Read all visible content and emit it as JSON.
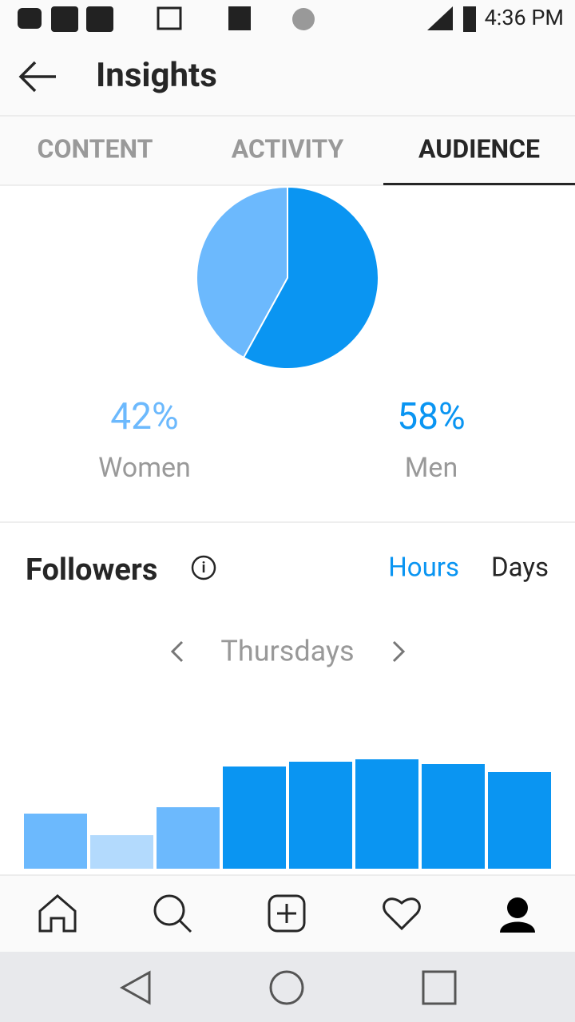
{
  "status_bar": {
    "time": "4:36 PM"
  },
  "header": {
    "title": "Insights"
  },
  "tabs": [
    "CONTENT",
    "ACTIVITY",
    "AUDIENCE"
  ],
  "followers": {
    "title": "Followers",
    "toggle": [
      "Hours",
      "Days"
    ],
    "day": "Thursdays"
  },
  "chart_data": [
    {
      "type": "pie",
      "categories": [
        "Women",
        "Men"
      ],
      "values": [
        42,
        58
      ],
      "value_labels": [
        "42%",
        "58%"
      ],
      "colors": [
        "#6cb9fd",
        "#0a95f2"
      ]
    },
    {
      "type": "bar",
      "values": [
        69,
        42,
        77,
        128,
        134,
        137,
        131,
        121
      ],
      "colors": [
        "#6cb9fd",
        "#b3dafd",
        "#6cb9fd",
        "#0a95f2",
        "#0a95f2",
        "#0a95f2",
        "#0a95f2",
        "#0a95f2"
      ],
      "ylim": [
        0,
        140
      ]
    }
  ]
}
